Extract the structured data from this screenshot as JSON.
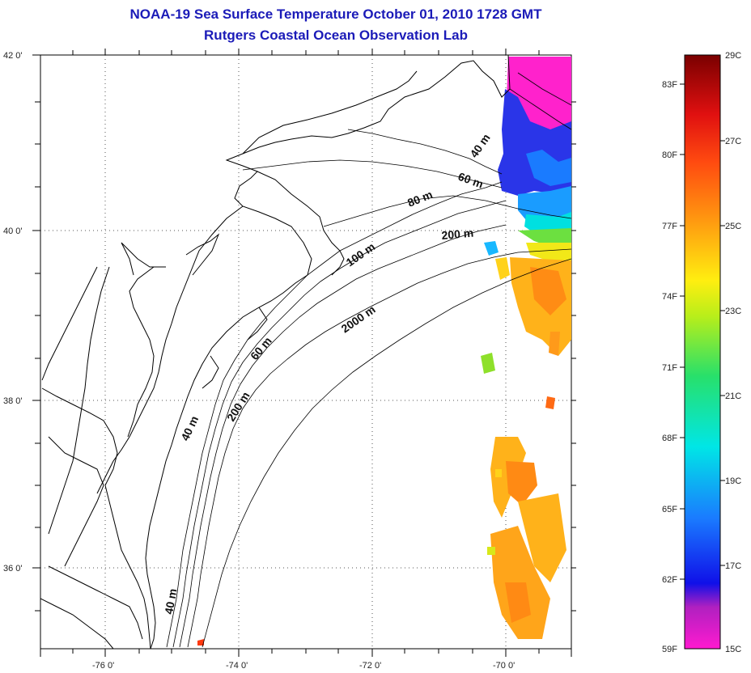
{
  "title": "NOAA-19 Sea Surface Temperature October 01, 2010 1728 GMT",
  "subtitle": "Rutgers Coastal Ocean Observation Lab",
  "lat_labels": [
    "42 0'",
    "40 0'",
    "38 0'",
    "36 0'"
  ],
  "lon_labels": [
    "-76 0'",
    "-74 0'",
    "-72 0'",
    "-70 0'"
  ],
  "contour_labels": [
    "40 m",
    "60 m",
    "80 m",
    "200 m",
    "100 m",
    "2000 m",
    "60 m",
    "200 m",
    "40 m",
    "40 m"
  ],
  "colorbar": {
    "f_labels": [
      "83F",
      "80F",
      "77F",
      "74F",
      "71F",
      "68F",
      "65F",
      "62F",
      "59F"
    ],
    "c_labels": [
      "29C",
      "27C",
      "25C",
      "23C",
      "21C",
      "19C",
      "17C",
      "15C"
    ]
  },
  "colors": {
    "title": "#1b1bb8"
  }
}
